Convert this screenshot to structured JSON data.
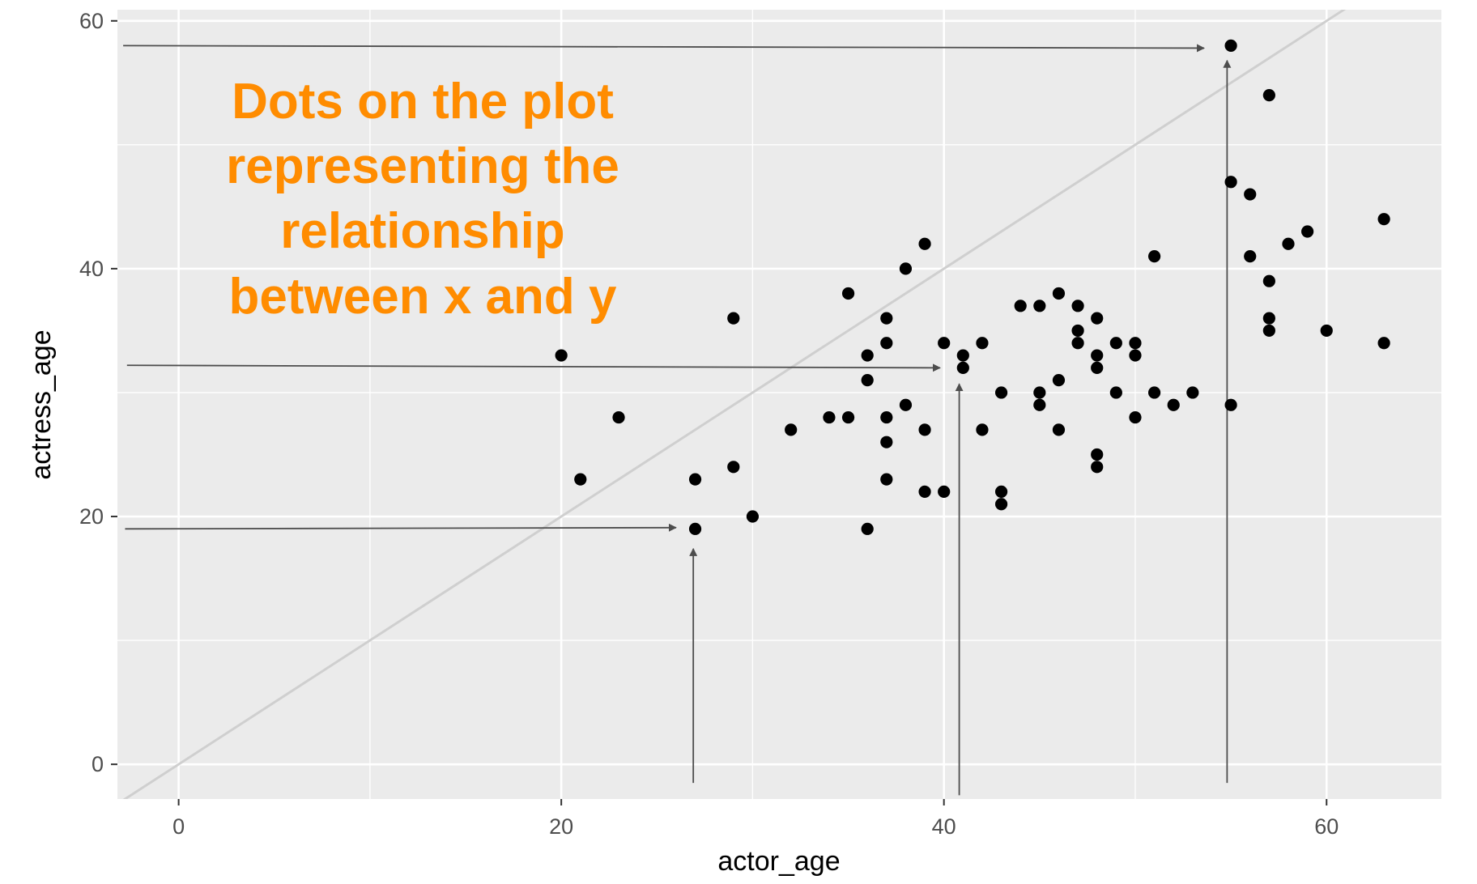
{
  "chart_data": {
    "type": "scatter",
    "title": "",
    "xlabel": "actor_age",
    "ylabel": "actress_age",
    "xlim": [
      -3.2,
      66
    ],
    "ylim": [
      -2.8,
      60.9
    ],
    "x_ticks": [
      0,
      20,
      40,
      60
    ],
    "y_ticks": [
      0,
      20,
      40,
      60
    ],
    "x_tick_labels": [
      "0",
      "20",
      "40",
      "60"
    ],
    "y_tick_labels": [
      "0",
      "20",
      "40",
      "60"
    ],
    "grid": true,
    "reference_line": {
      "slope": 1,
      "intercept": 0,
      "color": "#cfcfcf"
    },
    "point_color": "#000000",
    "points": [
      {
        "x": 20,
        "y": 33
      },
      {
        "x": 21,
        "y": 23
      },
      {
        "x": 23,
        "y": 28
      },
      {
        "x": 27,
        "y": 23
      },
      {
        "x": 27,
        "y": 19
      },
      {
        "x": 29,
        "y": 36
      },
      {
        "x": 29,
        "y": 24
      },
      {
        "x": 30,
        "y": 20
      },
      {
        "x": 32,
        "y": 27
      },
      {
        "x": 34,
        "y": 28
      },
      {
        "x": 35,
        "y": 38
      },
      {
        "x": 35,
        "y": 28
      },
      {
        "x": 36,
        "y": 33
      },
      {
        "x": 36,
        "y": 31
      },
      {
        "x": 36,
        "y": 19
      },
      {
        "x": 37,
        "y": 36
      },
      {
        "x": 37,
        "y": 34
      },
      {
        "x": 37,
        "y": 28
      },
      {
        "x": 37,
        "y": 26
      },
      {
        "x": 37,
        "y": 23
      },
      {
        "x": 38,
        "y": 40
      },
      {
        "x": 38,
        "y": 29
      },
      {
        "x": 39,
        "y": 42
      },
      {
        "x": 39,
        "y": 27
      },
      {
        "x": 39,
        "y": 22
      },
      {
        "x": 40,
        "y": 34
      },
      {
        "x": 40,
        "y": 22
      },
      {
        "x": 41,
        "y": 33
      },
      {
        "x": 41,
        "y": 32
      },
      {
        "x": 42,
        "y": 34
      },
      {
        "x": 42,
        "y": 27
      },
      {
        "x": 43,
        "y": 30
      },
      {
        "x": 43,
        "y": 22
      },
      {
        "x": 43,
        "y": 21
      },
      {
        "x": 44,
        "y": 37
      },
      {
        "x": 45,
        "y": 37
      },
      {
        "x": 45,
        "y": 30
      },
      {
        "x": 45,
        "y": 29
      },
      {
        "x": 46,
        "y": 38
      },
      {
        "x": 46,
        "y": 31
      },
      {
        "x": 46,
        "y": 27
      },
      {
        "x": 47,
        "y": 37
      },
      {
        "x": 47,
        "y": 35
      },
      {
        "x": 47,
        "y": 34
      },
      {
        "x": 48,
        "y": 36
      },
      {
        "x": 48,
        "y": 33
      },
      {
        "x": 48,
        "y": 32
      },
      {
        "x": 48,
        "y": 25
      },
      {
        "x": 48,
        "y": 24
      },
      {
        "x": 49,
        "y": 34
      },
      {
        "x": 49,
        "y": 30
      },
      {
        "x": 50,
        "y": 34
      },
      {
        "x": 50,
        "y": 33
      },
      {
        "x": 50,
        "y": 28
      },
      {
        "x": 51,
        "y": 41
      },
      {
        "x": 51,
        "y": 30
      },
      {
        "x": 52,
        "y": 29
      },
      {
        "x": 53,
        "y": 30
      },
      {
        "x": 55,
        "y": 58
      },
      {
        "x": 55,
        "y": 47
      },
      {
        "x": 55,
        "y": 29
      },
      {
        "x": 56,
        "y": 46
      },
      {
        "x": 56,
        "y": 41
      },
      {
        "x": 57,
        "y": 54
      },
      {
        "x": 57,
        "y": 39
      },
      {
        "x": 57,
        "y": 36
      },
      {
        "x": 57,
        "y": 35
      },
      {
        "x": 58,
        "y": 42
      },
      {
        "x": 59,
        "y": 43
      },
      {
        "x": 60,
        "y": 35
      },
      {
        "x": 63,
        "y": 44
      },
      {
        "x": 63,
        "y": 34
      }
    ],
    "annotation": {
      "lines": [
        "Dots on the plot",
        "representing the",
        "relationship",
        "between x and y"
      ],
      "color": "#ff8c00"
    },
    "annotation_arrows": [
      {
        "name": "arrow-horizontal-top",
        "from": {
          "x": -2.9,
          "y": 58
        },
        "to": {
          "x": 53.6,
          "y": 57.8
        }
      },
      {
        "name": "arrow-horizontal-middle",
        "from": {
          "x": -2.7,
          "y": 32.2
        },
        "to": {
          "x": 39.8,
          "y": 32
        }
      },
      {
        "name": "arrow-horizontal-bottom",
        "from": {
          "x": -2.8,
          "y": 19
        },
        "to": {
          "x": 26,
          "y": 19.1
        }
      },
      {
        "name": "arrow-vertical-left",
        "from": {
          "x": 26.9,
          "y": -1.5
        },
        "to": {
          "x": 26.9,
          "y": 17.4
        }
      },
      {
        "name": "arrow-vertical-middle",
        "from": {
          "x": 40.8,
          "y": -2.5
        },
        "to": {
          "x": 40.8,
          "y": 30.7
        }
      },
      {
        "name": "arrow-vertical-right",
        "from": {
          "x": 54.8,
          "y": -1.5
        },
        "to": {
          "x": 54.8,
          "y": 56.8
        }
      }
    ]
  }
}
